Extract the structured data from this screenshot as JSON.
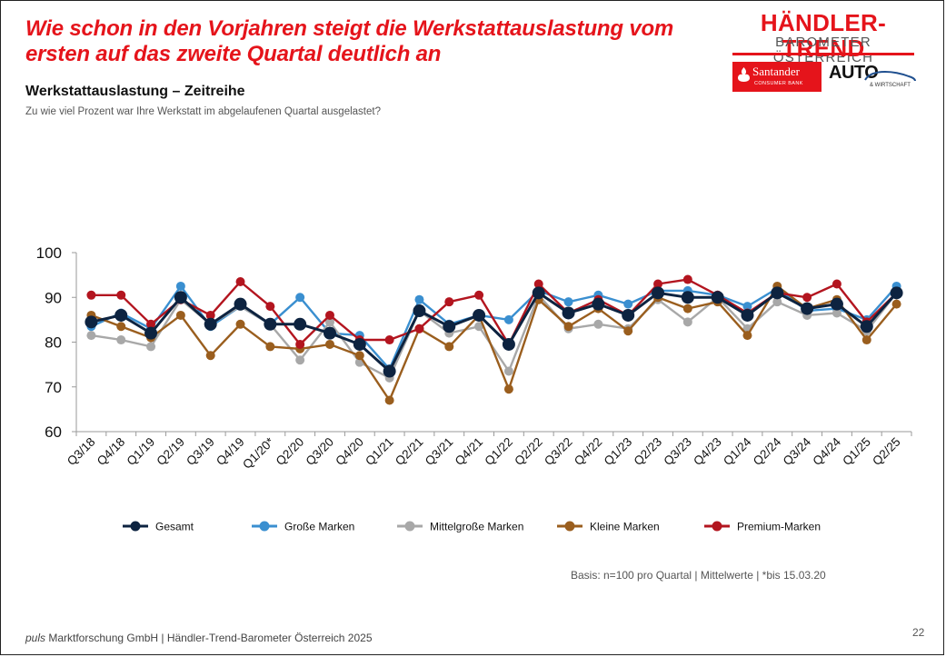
{
  "headline": "Wie schon in den Vorjahren steigt die Werkstattauslastung vom ersten auf das zweite Quartal deutlich an",
  "subtitle": "Werkstattauslastung – Zeitreihe",
  "question": "Zu wie viel Prozent war Ihre Werkstatt im abgelaufenen Quartal ausgelastet?",
  "logo": {
    "title": "HÄNDLER-TREND",
    "subtitle": "BAROMETER ÖSTERREICH",
    "santander": "Santander",
    "santander_tag": "CONSUMER BANK",
    "auto": "AUTO",
    "auto_tag": "& WIRTSCHAFT",
    "brand_color": "#e5141b"
  },
  "basis": "Basis: n=100 pro Quartal | Mittelwerte | *bis 15.03.20",
  "footer": {
    "brand": "puls",
    "text": " Marktforschung GmbH | Händler-Trend-Barometer Österreich 2025"
  },
  "page_number": "22",
  "chart_data": {
    "type": "line",
    "categories": [
      "Q3/18",
      "Q4/18",
      "Q1/19",
      "Q2/19",
      "Q3/19",
      "Q4/19",
      "Q1/20*",
      "Q2/20",
      "Q3/20",
      "Q4/20",
      "Q1/21",
      "Q2/21",
      "Q3/21",
      "Q4/21",
      "Q1/22",
      "Q2/22",
      "Q3/22",
      "Q4/22",
      "Q1/23",
      "Q2/23",
      "Q3/23",
      "Q4/23",
      "Q1/24",
      "Q2/24",
      "Q3/24",
      "Q4/24",
      "Q1/25",
      "Q2/25"
    ],
    "ylim": [
      60,
      100
    ],
    "yticks": [
      "60",
      "70",
      "80",
      "90",
      "100"
    ],
    "grid": false,
    "legend_position": "bottom",
    "series": [
      {
        "name": "Große Marken",
        "color": "#3a8fd0",
        "values": [
          83.5,
          86.5,
          83,
          92.5,
          83.5,
          88,
          84,
          90,
          82,
          81.5,
          74,
          89.5,
          84,
          86,
          85,
          91.5,
          89,
          90.5,
          88.5,
          91.5,
          91.5,
          90.5,
          88,
          92,
          87,
          87.5,
          85,
          92.5
        ]
      },
      {
        "name": "Mittelgroße Marken",
        "color": "#a8a8a8",
        "values": [
          81.5,
          80.5,
          79,
          89.5,
          84,
          88,
          84,
          76,
          84.5,
          75.5,
          72,
          87,
          82,
          83.5,
          73.5,
          90.5,
          83,
          84,
          83,
          89.5,
          84.5,
          90,
          83,
          89,
          86,
          86.5,
          82.5,
          91
        ]
      },
      {
        "name": "Kleine Marken",
        "color": "#9a5e1e",
        "values": [
          86,
          83.5,
          81,
          86,
          77,
          84,
          79,
          78.5,
          79.5,
          77,
          67,
          83,
          79,
          86,
          69.5,
          89.5,
          83.5,
          87.5,
          82.5,
          90,
          87.5,
          89,
          81.5,
          92.5,
          87.5,
          89.5,
          80.5,
          88.5
        ]
      },
      {
        "name": "Premium-Marken",
        "color": "#b3151f",
        "values": [
          90.5,
          90.5,
          84,
          89.5,
          86,
          93.5,
          88,
          79.5,
          86,
          80.5,
          80.5,
          83,
          89,
          90.5,
          79.5,
          93,
          86.5,
          89.5,
          86,
          93,
          94,
          90.5,
          86.5,
          91,
          90,
          93,
          84.5,
          91
        ]
      },
      {
        "name": "Gesamt",
        "color": "#0d2340",
        "values": [
          84.5,
          86,
          82,
          90,
          84,
          88.5,
          84,
          84,
          82,
          79.5,
          73.5,
          87,
          83.5,
          86,
          79.5,
          91,
          86.5,
          88.5,
          86,
          91,
          90,
          90,
          86,
          91,
          87.5,
          88.5,
          83.5,
          91
        ]
      }
    ],
    "legend": [
      {
        "name": "Gesamt",
        "color": "#0d2340"
      },
      {
        "name": "Große Marken",
        "color": "#3a8fd0"
      },
      {
        "name": "Mittelgroße Marken",
        "color": "#a8a8a8"
      },
      {
        "name": "Kleine Marken",
        "color": "#9a5e1e"
      },
      {
        "name": "Premium-Marken",
        "color": "#b3151f"
      }
    ]
  }
}
